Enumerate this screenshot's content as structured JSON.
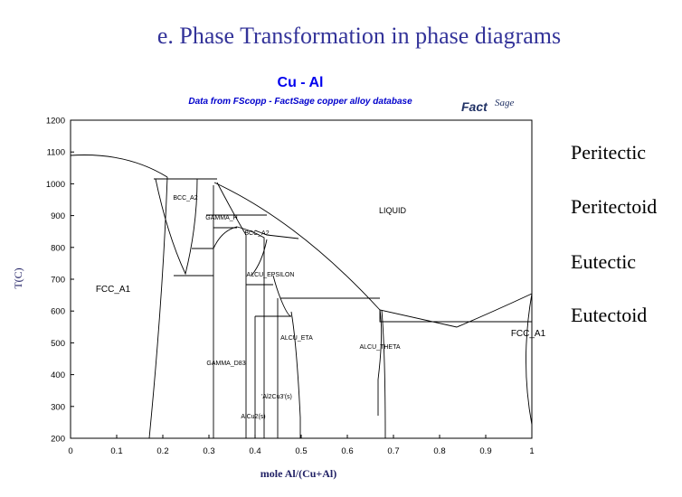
{
  "slide_title": "e. Phase Transformation in phase diagrams",
  "diagram": {
    "title": "Cu - Al",
    "subtitle": "Data from FScopp - FactSage copper alloy database",
    "logo": {
      "main": "Fact",
      "sup": "Sage"
    },
    "x_label": "mole Al/(Cu+Al)",
    "y_label": "T(C)",
    "xlim": [
      0,
      1
    ],
    "ylim": [
      200,
      1200
    ],
    "xticks": [
      0,
      0.1,
      0.2,
      0.3,
      0.4,
      0.5,
      0.6,
      0.7,
      0.8,
      0.9,
      1
    ],
    "yticks": [
      200,
      300,
      400,
      500,
      600,
      700,
      800,
      900,
      1000,
      1100,
      1200
    ],
    "regions": [
      "FCC_A1",
      "LIQUID",
      "BCC_A2",
      "GAMMA_H",
      "BCC_A2",
      "ALCU_EPSILON",
      "ALCU_ETA",
      "ALCU_THETA",
      "GAMMA_D83",
      "'Al2Cu3'(s)",
      "AlCu2(s)",
      "FCC_A1"
    ]
  },
  "reactions": [
    "Peritectic",
    "Peritectoid",
    "Eutectic",
    "Eutectoid"
  ]
}
